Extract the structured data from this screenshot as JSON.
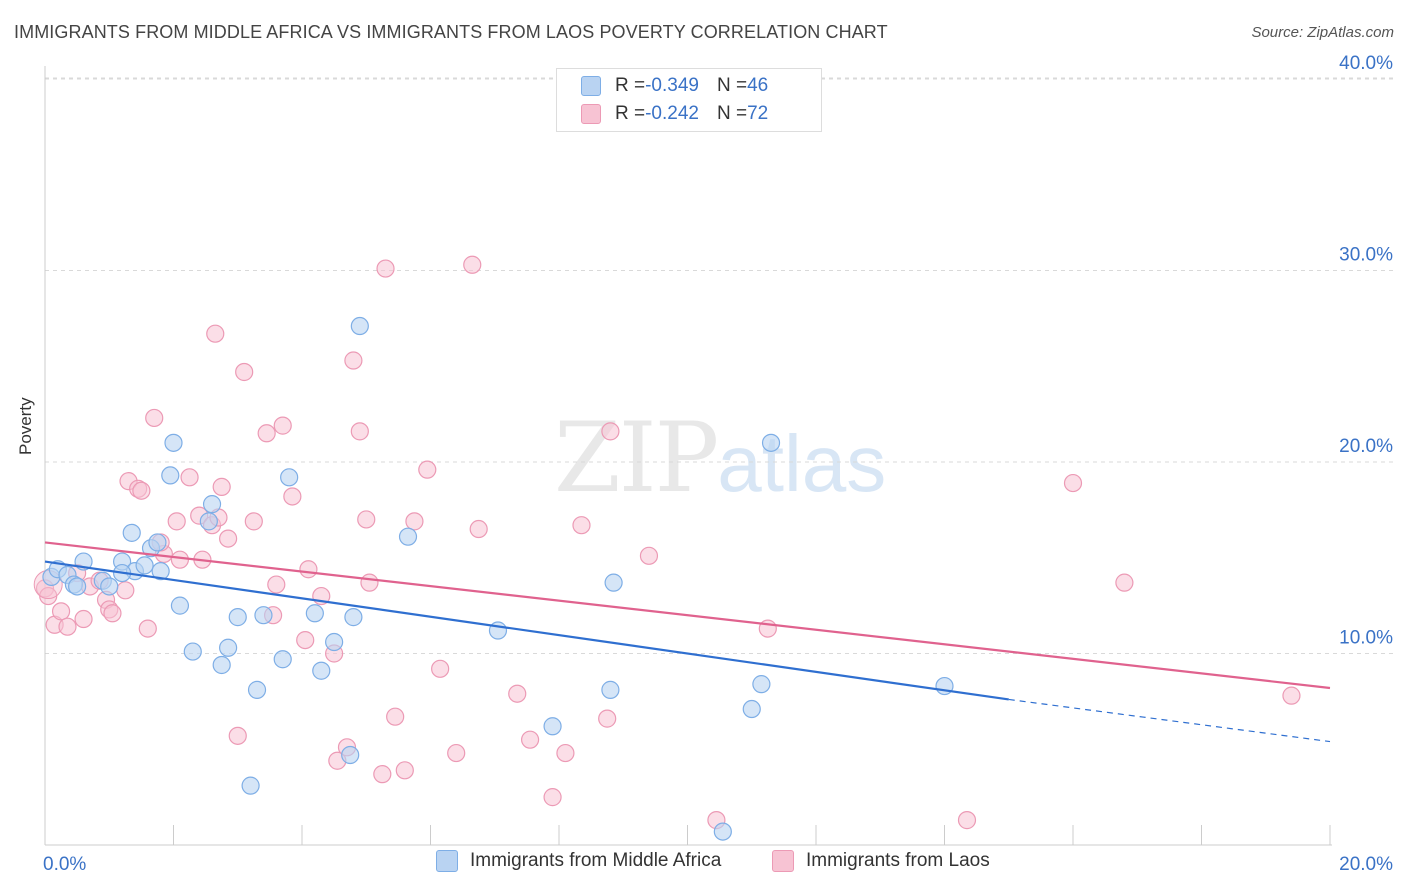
{
  "header": {
    "title": "IMMIGRANTS FROM MIDDLE AFRICA VS IMMIGRANTS FROM LAOS POVERTY CORRELATION CHART",
    "source": "Source: ZipAtlas.com"
  },
  "watermark": {
    "zip": "ZIP",
    "atlas": "atlas"
  },
  "legend": {
    "series1": {
      "r_label": "R = ",
      "r_value": "-0.349",
      "n_label": "N = ",
      "n_value": "46"
    },
    "series2": {
      "r_label": "R = ",
      "r_value": "-0.242",
      "n_label": "N = ",
      "n_value": "72"
    }
  },
  "colors": {
    "blue_fill": "#b9d3f2",
    "blue_stroke": "#7eaee6",
    "blue_line": "#2f6fd0",
    "pink_fill": "#f7c3d3",
    "pink_stroke": "#ec9ab5",
    "pink_line": "#e0628e",
    "axis_text": "#3a72c6",
    "grid": "#d9d9d9"
  },
  "chart_data": {
    "type": "scatter",
    "title": "IMMIGRANTS FROM MIDDLE AFRICA VS IMMIGRANTS FROM LAOS POVERTY CORRELATION CHART",
    "xlabel": "",
    "ylabel": "Poverty",
    "xlim": [
      0,
      20
    ],
    "ylim": [
      0,
      40
    ],
    "x_tick_labels": [
      "0.0%",
      "20.0%"
    ],
    "y_ticks": [
      10,
      20,
      30,
      40
    ],
    "y_tick_labels": [
      "10.0%",
      "20.0%",
      "30.0%",
      "40.0%"
    ],
    "grid": "horizontal dashed",
    "legend_position": "top-center",
    "series": [
      {
        "name": "Immigrants from Middle Africa",
        "color": "#b9d3f2",
        "trend": {
          "x0": 0,
          "y0": 14.8,
          "x1": 15,
          "y1": 7.6,
          "dash_to_x": 20,
          "dash_to_y": 5.4
        },
        "points": [
          [
            0.1,
            14.0
          ],
          [
            0.2,
            14.4
          ],
          [
            0.35,
            14.1
          ],
          [
            0.45,
            13.6
          ],
          [
            0.6,
            14.8
          ],
          [
            0.9,
            13.8
          ],
          [
            1.0,
            13.5
          ],
          [
            1.2,
            14.8
          ],
          [
            1.4,
            14.3
          ],
          [
            1.35,
            16.3
          ],
          [
            1.55,
            14.6
          ],
          [
            1.65,
            15.5
          ],
          [
            1.75,
            15.8
          ],
          [
            1.8,
            14.3
          ],
          [
            1.95,
            19.3
          ],
          [
            2.0,
            21.0
          ],
          [
            2.1,
            12.5
          ],
          [
            2.3,
            10.1
          ],
          [
            2.55,
            16.9
          ],
          [
            2.6,
            17.8
          ],
          [
            2.75,
            9.4
          ],
          [
            2.85,
            10.3
          ],
          [
            3.0,
            11.9
          ],
          [
            3.3,
            8.1
          ],
          [
            3.4,
            12.0
          ],
          [
            3.7,
            9.7
          ],
          [
            3.8,
            19.2
          ],
          [
            4.2,
            12.1
          ],
          [
            4.3,
            9.1
          ],
          [
            4.5,
            10.6
          ],
          [
            4.75,
            4.7
          ],
          [
            4.8,
            11.9
          ],
          [
            4.9,
            27.1
          ],
          [
            5.65,
            16.1
          ],
          [
            7.05,
            11.2
          ],
          [
            7.9,
            6.2
          ],
          [
            8.8,
            8.1
          ],
          [
            8.85,
            13.7
          ],
          [
            10.55,
            0.7
          ],
          [
            11.0,
            7.1
          ],
          [
            11.15,
            8.4
          ],
          [
            11.3,
            21.0
          ],
          [
            14.0,
            8.3
          ],
          [
            3.2,
            3.1
          ],
          [
            1.2,
            14.2
          ],
          [
            0.5,
            13.5
          ]
        ]
      },
      {
        "name": "Immigrants from Laos",
        "color": "#f7c3d3",
        "trend": {
          "x0": 0,
          "y0": 15.8,
          "x1": 20,
          "y1": 8.2
        },
        "points": [
          [
            0.0,
            13.4
          ],
          [
            0.05,
            13.0
          ],
          [
            0.15,
            11.5
          ],
          [
            0.25,
            12.2
          ],
          [
            0.35,
            11.4
          ],
          [
            0.5,
            14.2
          ],
          [
            0.6,
            11.8
          ],
          [
            0.7,
            13.5
          ],
          [
            0.85,
            13.8
          ],
          [
            0.95,
            12.8
          ],
          [
            1.0,
            12.3
          ],
          [
            1.05,
            12.1
          ],
          [
            1.25,
            13.3
          ],
          [
            1.3,
            19.0
          ],
          [
            1.45,
            18.6
          ],
          [
            1.5,
            18.5
          ],
          [
            1.6,
            11.3
          ],
          [
            1.7,
            22.3
          ],
          [
            1.85,
            15.2
          ],
          [
            2.05,
            16.9
          ],
          [
            2.1,
            14.9
          ],
          [
            2.25,
            19.2
          ],
          [
            2.4,
            17.2
          ],
          [
            2.45,
            14.9
          ],
          [
            2.6,
            16.7
          ],
          [
            2.7,
            17.1
          ],
          [
            2.75,
            18.7
          ],
          [
            2.85,
            16.0
          ],
          [
            3.0,
            5.7
          ],
          [
            3.1,
            24.7
          ],
          [
            3.25,
            16.9
          ],
          [
            3.45,
            21.5
          ],
          [
            3.55,
            12.0
          ],
          [
            3.6,
            13.6
          ],
          [
            3.7,
            21.9
          ],
          [
            3.85,
            18.2
          ],
          [
            4.05,
            10.7
          ],
          [
            4.1,
            14.4
          ],
          [
            4.3,
            13.0
          ],
          [
            4.5,
            10.0
          ],
          [
            4.55,
            4.4
          ],
          [
            4.7,
            5.1
          ],
          [
            4.8,
            25.3
          ],
          [
            4.9,
            21.6
          ],
          [
            5.05,
            13.7
          ],
          [
            5.25,
            3.7
          ],
          [
            5.3,
            30.1
          ],
          [
            5.45,
            6.7
          ],
          [
            5.6,
            3.9
          ],
          [
            5.75,
            16.9
          ],
          [
            5.95,
            19.6
          ],
          [
            6.15,
            9.2
          ],
          [
            6.4,
            4.8
          ],
          [
            6.65,
            30.3
          ],
          [
            6.75,
            16.5
          ],
          [
            7.35,
            7.9
          ],
          [
            7.55,
            5.5
          ],
          [
            7.9,
            2.5
          ],
          [
            8.1,
            4.8
          ],
          [
            8.35,
            16.7
          ],
          [
            8.75,
            6.6
          ],
          [
            8.8,
            21.6
          ],
          [
            9.4,
            15.1
          ],
          [
            10.45,
            1.3
          ],
          [
            11.25,
            11.3
          ],
          [
            14.35,
            1.3
          ],
          [
            16.0,
            18.9
          ],
          [
            16.8,
            13.7
          ],
          [
            19.4,
            7.8
          ],
          [
            2.65,
            26.7
          ],
          [
            5.0,
            17.0
          ],
          [
            1.8,
            15.8
          ]
        ]
      }
    ]
  },
  "bottom_legend": {
    "item1": "Immigrants from Middle Africa",
    "item2": "Immigrants from Laos"
  }
}
